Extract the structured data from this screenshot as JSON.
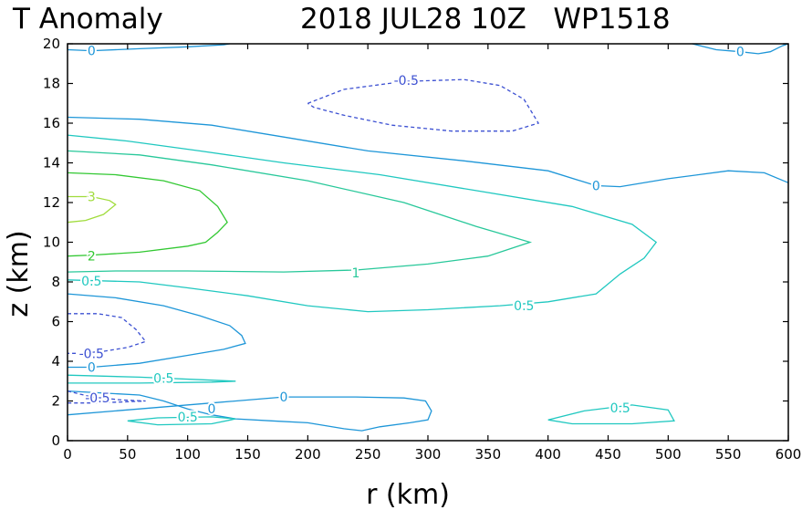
{
  "chart_data": {
    "type": "contour",
    "title_left": "T Anomaly",
    "title_right": "2018 JUL28 10Z   WP1518",
    "xlabel": "r (km)",
    "ylabel": "z (km)",
    "xlim": [
      0,
      600
    ],
    "ylim": [
      0,
      20
    ],
    "xticks": [
      "0",
      "50",
      "100",
      "150",
      "200",
      "250",
      "300",
      "350",
      "400",
      "450",
      "500",
      "550",
      "600"
    ],
    "yticks": [
      "0",
      "2",
      "4",
      "6",
      "8",
      "10",
      "12",
      "14",
      "16",
      "18",
      "20"
    ],
    "levels": [
      {
        "level": "0",
        "color": "#1e96d8",
        "dashed": false,
        "lines": [
          [
            [
              0,
              19.7
            ],
            [
              20,
              19.65
            ],
            [
              60,
              19.75
            ],
            [
              100,
              19.85
            ],
            [
              130,
              19.95
            ],
            [
              135,
              20.0
            ]
          ],
          [
            [
              520,
              20.0
            ],
            [
              540,
              19.7
            ],
            [
              560,
              19.6
            ],
            [
              575,
              19.5
            ],
            [
              585,
              19.6
            ],
            [
              595,
              19.9
            ],
            [
              600,
              20.0
            ]
          ],
          [
            [
              0,
              16.3
            ],
            [
              60,
              16.2
            ],
            [
              120,
              15.9
            ],
            [
              180,
              15.3
            ],
            [
              250,
              14.6
            ],
            [
              330,
              14.1
            ],
            [
              400,
              13.6
            ],
            [
              440,
              12.85
            ],
            [
              460,
              12.8
            ],
            [
              500,
              13.2
            ],
            [
              550,
              13.6
            ],
            [
              580,
              13.5
            ],
            [
              600,
              13.0
            ]
          ],
          [
            [
              0,
              7.4
            ],
            [
              40,
              7.2
            ],
            [
              80,
              6.8
            ],
            [
              110,
              6.3
            ],
            [
              135,
              5.8
            ],
            [
              145,
              5.3
            ],
            [
              148,
              4.9
            ],
            [
              130,
              4.6
            ],
            [
              100,
              4.3
            ],
            [
              60,
              3.9
            ],
            [
              20,
              3.7
            ],
            [
              0,
              3.7
            ]
          ],
          [
            [
              0,
              1.3
            ],
            [
              60,
              1.6
            ],
            [
              120,
              1.9
            ],
            [
              180,
              2.2
            ],
            [
              240,
              2.2
            ],
            [
              280,
              2.15
            ],
            [
              298,
              2.0
            ],
            [
              303,
              1.5
            ],
            [
              300,
              1.05
            ],
            [
              285,
              0.9
            ],
            [
              260,
              0.7
            ],
            [
              245,
              0.5
            ],
            [
              230,
              0.6
            ],
            [
              200,
              0.9
            ],
            [
              170,
              1.0
            ],
            [
              140,
              1.1
            ],
            [
              120,
              1.3
            ]
          ],
          [
            [
              120,
              1.3
            ],
            [
              100,
              1.6
            ],
            [
              80,
              2.0
            ],
            [
              60,
              2.3
            ],
            [
              0,
              2.5
            ]
          ]
        ],
        "labels": [
          {
            "text": "0",
            "x": 20,
            "y": 19.65
          },
          {
            "text": "0",
            "x": 560,
            "y": 19.6
          },
          {
            "text": "0",
            "x": 440,
            "y": 12.85
          },
          {
            "text": "0",
            "x": 20,
            "y": 3.7
          },
          {
            "text": "0",
            "x": 180,
            "y": 2.2
          },
          {
            "text": "0",
            "x": 120,
            "y": 1.6
          }
        ]
      },
      {
        "level": "-0.5",
        "color": "#3c50d2",
        "dashed": true,
        "lines": [
          [
            [
              200,
              17.0
            ],
            [
              230,
              17.7
            ],
            [
              280,
              18.1
            ],
            [
              330,
              18.2
            ],
            [
              360,
              17.9
            ],
            [
              380,
              17.2
            ],
            [
              392,
              16.0
            ],
            [
              370,
              15.6
            ],
            [
              320,
              15.6
            ],
            [
              270,
              15.9
            ],
            [
              230,
              16.4
            ],
            [
              205,
              16.8
            ],
            [
              200,
              17.0
            ]
          ],
          [
            [
              0,
              6.4
            ],
            [
              25,
              6.4
            ],
            [
              45,
              6.2
            ],
            [
              57,
              5.6
            ],
            [
              65,
              5.0
            ],
            [
              50,
              4.7
            ],
            [
              30,
              4.5
            ],
            [
              10,
              4.4
            ],
            [
              0,
              4.4
            ]
          ],
          [
            [
              0,
              2.5
            ],
            [
              20,
              2.2
            ],
            [
              45,
              2.05
            ],
            [
              65,
              2.0
            ],
            [
              45,
              1.95
            ],
            [
              20,
              1.9
            ],
            [
              0,
              1.9
            ]
          ]
        ],
        "labels": [
          {
            "text": "-0.5",
            "x": 282,
            "y": 18.15
          },
          {
            "text": "-0.5",
            "x": 20,
            "y": 4.4
          },
          {
            "text": "-0.5",
            "x": 25,
            "y": 2.15
          }
        ]
      },
      {
        "level": "0.5",
        "color": "#20c8c0",
        "dashed": false,
        "lines": [
          [
            [
              0,
              15.4
            ],
            [
              50,
              15.1
            ],
            [
              110,
              14.6
            ],
            [
              180,
              14.0
            ],
            [
              260,
              13.4
            ],
            [
              340,
              12.6
            ],
            [
              420,
              11.8
            ],
            [
              470,
              10.9
            ],
            [
              490,
              10.0
            ],
            [
              480,
              9.2
            ],
            [
              460,
              8.4
            ],
            [
              440,
              7.4
            ],
            [
              400,
              7.0
            ],
            [
              360,
              6.8
            ],
            [
              300,
              6.6
            ],
            [
              250,
              6.5
            ],
            [
              200,
              6.8
            ],
            [
              150,
              7.3
            ],
            [
              100,
              7.7
            ],
            [
              60,
              8.0
            ],
            [
              0,
              8.1
            ]
          ],
          [
            [
              0,
              3.3
            ],
            [
              60,
              3.2
            ],
            [
              120,
              3.05
            ],
            [
              140,
              3.0
            ],
            [
              120,
              2.95
            ],
            [
              60,
              2.9
            ],
            [
              0,
              2.9
            ]
          ],
          [
            [
              50,
              1.0
            ],
            [
              75,
              1.15
            ],
            [
              120,
              1.2
            ],
            [
              140,
              1.1
            ],
            [
              120,
              0.85
            ],
            [
              75,
              0.8
            ],
            [
              50,
              1.0
            ]
          ],
          [
            [
              400,
              1.05
            ],
            [
              430,
              1.5
            ],
            [
              470,
              1.8
            ],
            [
              500,
              1.55
            ],
            [
              505,
              1.0
            ],
            [
              470,
              0.85
            ],
            [
              420,
              0.85
            ],
            [
              400,
              1.05
            ]
          ]
        ],
        "labels": [
          {
            "text": "0.5",
            "x": 20,
            "y": 8.05
          },
          {
            "text": "0.5",
            "x": 380,
            "y": 6.8
          },
          {
            "text": "0.5",
            "x": 80,
            "y": 3.15
          },
          {
            "text": "0.5",
            "x": 100,
            "y": 1.2
          },
          {
            "text": "0.5",
            "x": 460,
            "y": 1.65
          }
        ]
      },
      {
        "level": "1",
        "color": "#28c89a",
        "dashed": false,
        "lines": [
          [
            [
              0,
              14.6
            ],
            [
              60,
              14.4
            ],
            [
              120,
              13.9
            ],
            [
              200,
              13.1
            ],
            [
              280,
              12.0
            ],
            [
              340,
              10.8
            ],
            [
              385,
              10.0
            ],
            [
              350,
              9.3
            ],
            [
              300,
              8.9
            ],
            [
              240,
              8.6
            ],
            [
              180,
              8.5
            ],
            [
              100,
              8.55
            ],
            [
              40,
              8.55
            ],
            [
              0,
              8.5
            ]
          ]
        ],
        "labels": [
          {
            "text": "1",
            "x": 240,
            "y": 8.45
          }
        ]
      },
      {
        "level": "2",
        "color": "#32c832",
        "dashed": false,
        "lines": [
          [
            [
              0,
              13.5
            ],
            [
              40,
              13.4
            ],
            [
              80,
              13.1
            ],
            [
              110,
              12.6
            ],
            [
              125,
              11.8
            ],
            [
              133,
              11.0
            ],
            [
              125,
              10.5
            ],
            [
              115,
              10.0
            ],
            [
              100,
              9.8
            ],
            [
              60,
              9.5
            ],
            [
              20,
              9.35
            ],
            [
              0,
              9.3
            ]
          ]
        ],
        "labels": [
          {
            "text": "2",
            "x": 20,
            "y": 9.3
          }
        ]
      },
      {
        "level": "3",
        "color": "#a0dc3c",
        "dashed": false,
        "lines": [
          [
            [
              0,
              12.3
            ],
            [
              20,
              12.3
            ],
            [
              35,
              12.1
            ],
            [
              40,
              11.9
            ],
            [
              30,
              11.4
            ],
            [
              15,
              11.1
            ],
            [
              0,
              11.0
            ]
          ]
        ],
        "labels": [
          {
            "text": "3",
            "x": 20,
            "y": 12.3
          }
        ]
      }
    ]
  }
}
